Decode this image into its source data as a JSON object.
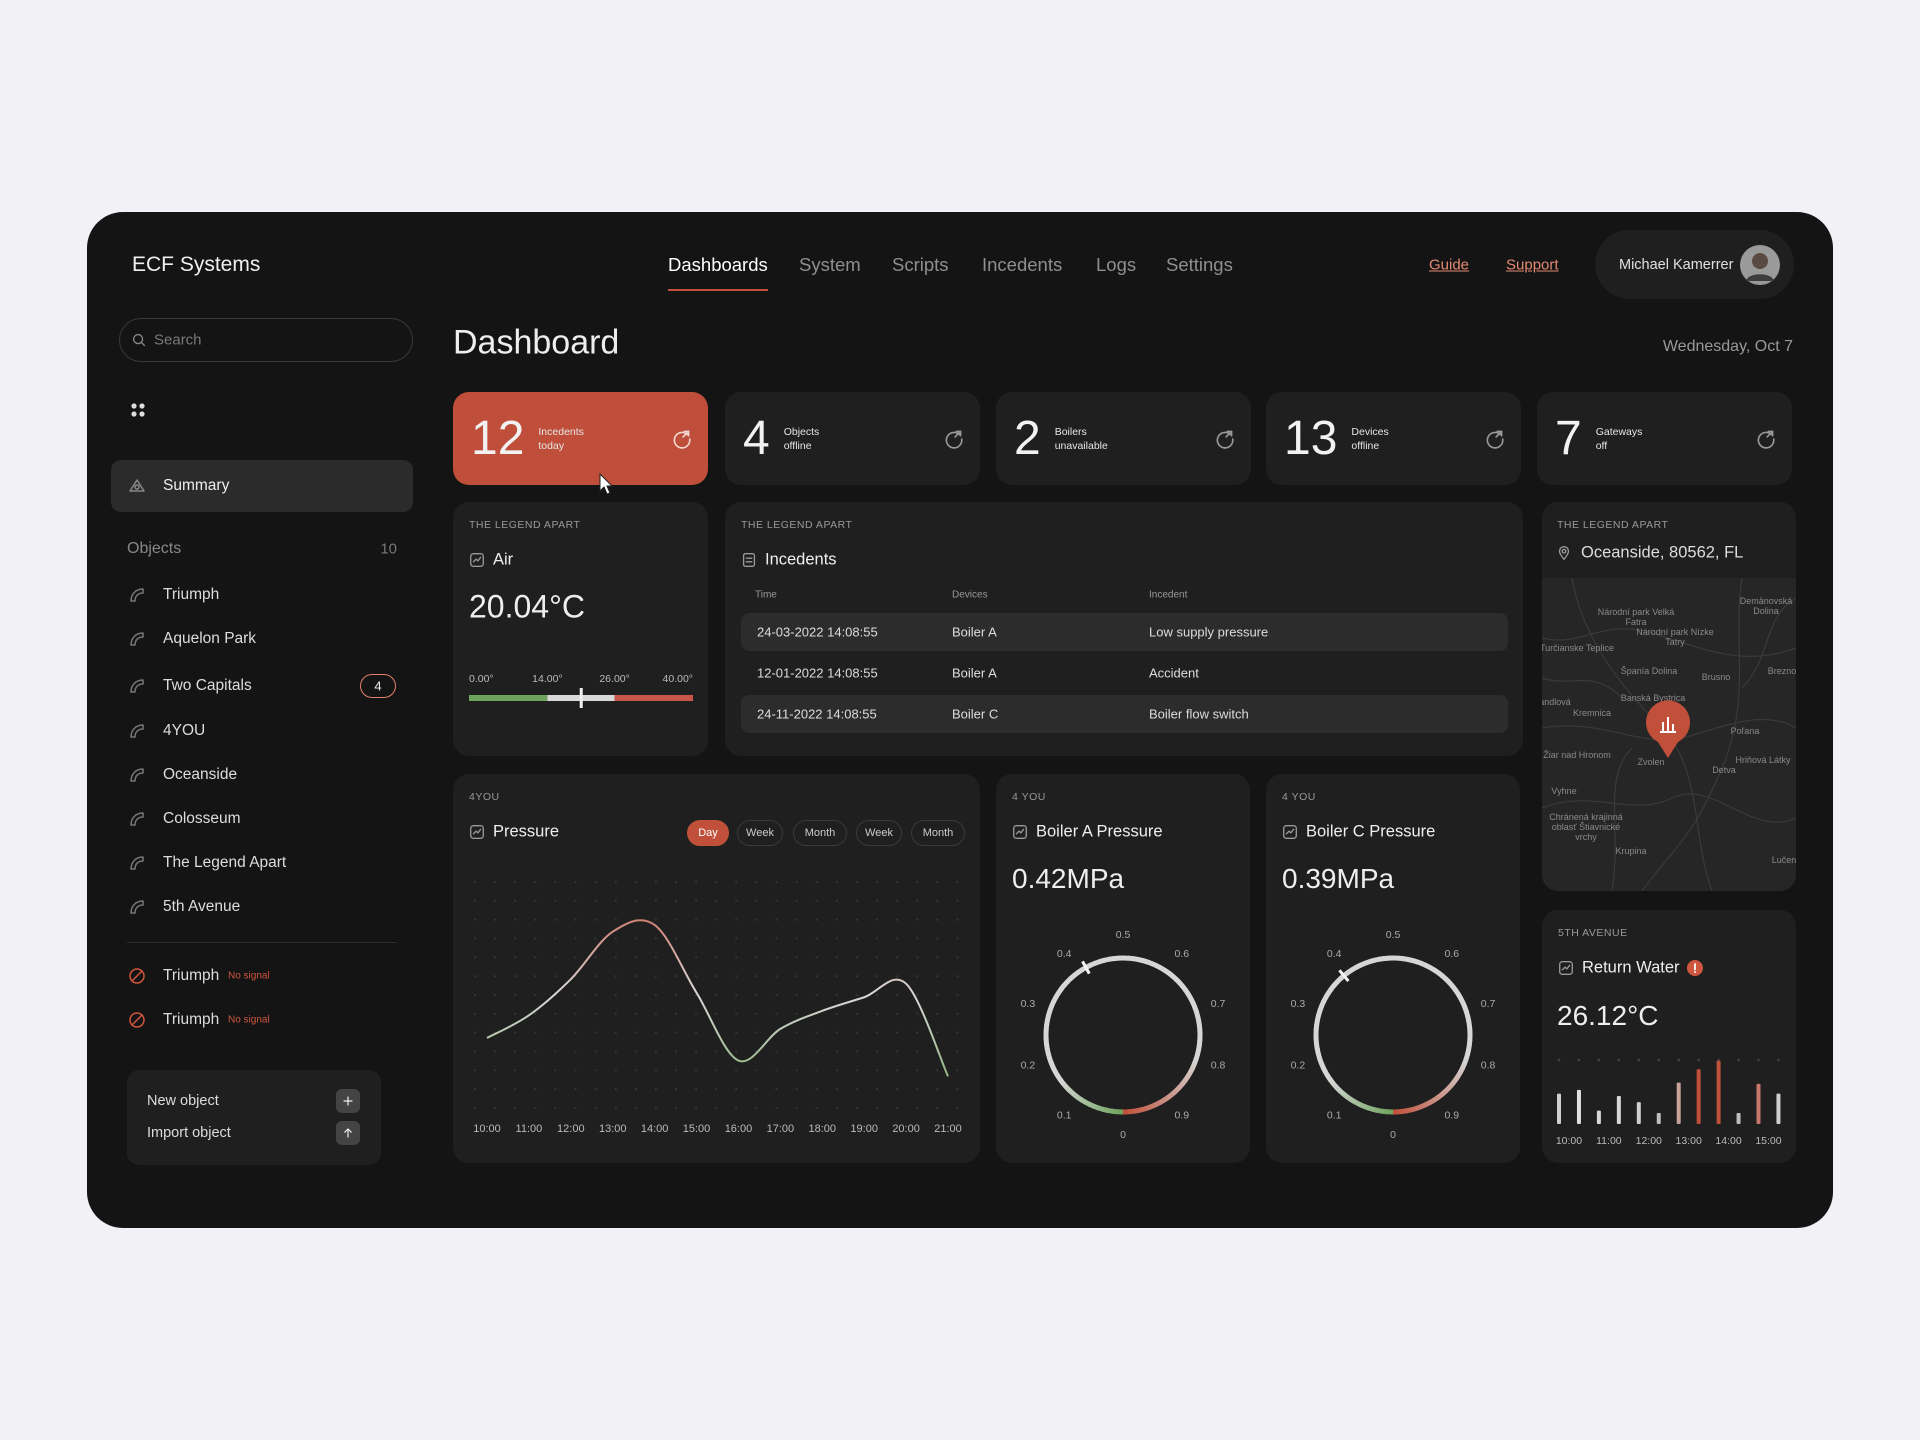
{
  "header": {
    "logo": "ECF Systems",
    "nav": [
      "Dashboards",
      "System",
      "Scripts",
      "Incedents",
      "Logs",
      "Settings"
    ],
    "active_nav": 0,
    "links": [
      "Guide",
      "Support"
    ],
    "user": "Michael Kamerrer"
  },
  "sidebar": {
    "search_placeholder": "Search",
    "summary": "Summary",
    "objects_label": "Objects",
    "objects_count": 10,
    "objects": [
      {
        "name": "Triumph"
      },
      {
        "name": "Aquelon Park"
      },
      {
        "name": "Two Capitals",
        "badge": 4
      },
      {
        "name": "4YOU"
      },
      {
        "name": "Oceanside"
      },
      {
        "name": "Colosseum"
      },
      {
        "name": "The Legend Apart"
      },
      {
        "name": "5th Avenue"
      }
    ],
    "offline": [
      {
        "name": "Triumph",
        "status": "No signal"
      },
      {
        "name": "Triumph",
        "status": "No signal"
      }
    ],
    "actions": [
      "New object",
      "Import object"
    ]
  },
  "page": {
    "title": "Dashboard",
    "date": "Wednesday, Oct 7"
  },
  "stats": [
    {
      "value": 12,
      "label": [
        "Incedents",
        "today"
      ],
      "highlight": true
    },
    {
      "value": 4,
      "label": [
        "Objects",
        "offline"
      ]
    },
    {
      "value": 2,
      "label": [
        "Boilers",
        "unavailable"
      ]
    },
    {
      "value": 13,
      "label": [
        "Devices",
        "offline"
      ]
    },
    {
      "value": 7,
      "label": [
        "Gateways",
        "off"
      ]
    }
  ],
  "incidents": {
    "location": "THE LEGEND APART",
    "title": "Incedents",
    "columns": [
      "Time",
      "Devices",
      "Incedent"
    ],
    "rows": [
      [
        "24-03-2022 14:08:55",
        "Boiler A",
        "Low supply pressure"
      ],
      [
        "12-01-2022 14:08:55",
        "Boiler A",
        "Accident"
      ],
      [
        "24-11-2022 14:08:55",
        "Boiler C",
        "Boiler flow switch"
      ]
    ]
  },
  "map": {
    "location": "THE LEGEND APART",
    "address": "Oceanside, 80562, FL",
    "labels": [
      "Národní park Velká Fatra",
      "Demänovská Dolina",
      "Národní park Nízke Tatry",
      "Turčianske Teplice",
      "Španía Dolina",
      "Brusno",
      "Brezno",
      "andlová",
      "Kremnica",
      "Banská Bystrica",
      "Poľana",
      "Hriňová Látky",
      "Žiar nad Hronom",
      "Zvolen",
      "Detva",
      "Vyhne",
      "Chránená krajinná oblasť Štiavnické vrchy",
      "Krupina",
      "Lučen"
    ]
  },
  "chart_data": [
    {
      "type": "range",
      "location": "THE LEGEND APART",
      "title": "Air",
      "value": 20.04,
      "value_label": "20.04°C",
      "xlim": [
        0,
        40
      ],
      "xticks": [
        {
          "value": 0,
          "label": "0.00°"
        },
        {
          "value": 14,
          "label": "14.00°"
        },
        {
          "value": 26,
          "label": "26.00°"
        },
        {
          "value": 40,
          "label": "40.00°"
        }
      ],
      "colors": [
        "#6ea35c",
        "#d9d9d9",
        "#c9564a"
      ]
    },
    {
      "type": "line",
      "location": "4YOU",
      "title": "Pressure",
      "periods": [
        "Day",
        "Week",
        "Month",
        "Week",
        "Month"
      ],
      "active_period": 0,
      "categories": [
        "10:00",
        "11:00",
        "12:00",
        "13:00",
        "14:00",
        "15:00",
        "16:00",
        "17:00",
        "18:00",
        "19:00",
        "20:00",
        "21:00"
      ],
      "values": [
        31,
        41,
        57,
        78,
        81,
        51,
        21,
        35,
        43,
        49,
        55,
        14
      ],
      "ylim": [
        0,
        100
      ],
      "grid": true,
      "colors": [
        "#c9563f",
        "#d9d9d9",
        "#79a862"
      ]
    },
    {
      "type": "gauge",
      "location": "4 YOU",
      "title": "Boiler A Pressure",
      "value": 0.42,
      "value_label": "0.42MPa",
      "ylim": [
        0,
        1
      ],
      "yticks": [
        0,
        0.1,
        0.2,
        0.3,
        0.4,
        0.5,
        0.6,
        0.7,
        0.8,
        0.9
      ],
      "colors": [
        "#6ea35c",
        "#d6d6d6",
        "#c0503a"
      ]
    },
    {
      "type": "gauge",
      "location": "4 YOU",
      "title": "Boiler C Pressure",
      "value": 0.39,
      "value_label": "0.39MPa",
      "ylim": [
        0,
        1
      ],
      "yticks": [
        0,
        0.1,
        0.2,
        0.3,
        0.4,
        0.5,
        0.6,
        0.7,
        0.8,
        0.9
      ],
      "colors": [
        "#6ea35c",
        "#d6d6d6",
        "#c0503a"
      ]
    },
    {
      "type": "bar",
      "location": "5TH AVENUE",
      "title": "Return Water",
      "reading": "26.12°C",
      "categories": [
        "10:00",
        null,
        "11:00",
        null,
        "12:00",
        null,
        "13:00",
        null,
        "14:00",
        null,
        "15:00",
        null
      ],
      "values": [
        25,
        28,
        11,
        23,
        18,
        9,
        34,
        45,
        52,
        9,
        33,
        25
      ],
      "ylim": [
        0,
        60
      ],
      "colors": [
        "#cfcfcf",
        "#e0e0e0",
        "#d8d8d8",
        "#d8d8d8",
        "#d0d0d0",
        "#bdbdbd",
        "#c9a39a",
        "#c0503a",
        "#c0503a",
        "#bdbdbd",
        "#c7786a",
        "#cfcfcf"
      ]
    }
  ]
}
